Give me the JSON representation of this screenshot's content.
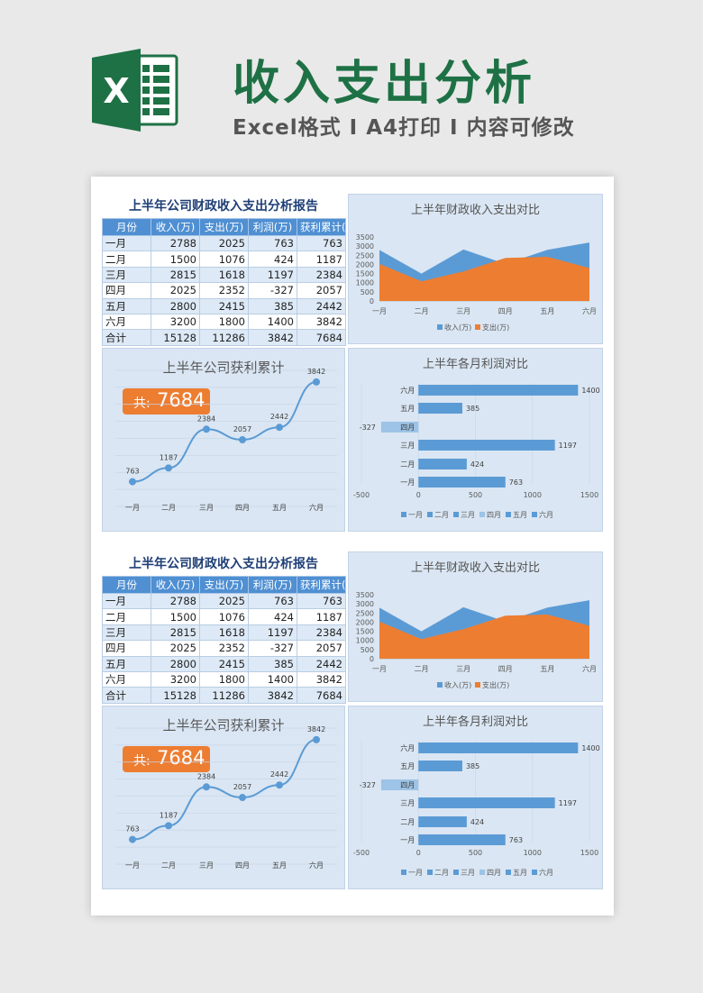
{
  "header": {
    "logo_letter": "X",
    "title": "收入支出分析",
    "subtitle": "Excel格式 I A4打印 I 内容可修改"
  },
  "colors": {
    "brand_green": "#1e7145",
    "income_blue": "#5b9bd5",
    "expense_orange": "#ed7d31",
    "negative_bar": "#9dc3e6",
    "panel_bg": "#dae6f3",
    "header_blue": "#4f8fd2"
  },
  "table": {
    "title": "上半年公司财政收入支出分析报告",
    "headers": [
      "月份",
      "收入(万)",
      "支出(万)",
      "利润(万)",
      "获利累计(万)"
    ],
    "rows": [
      [
        "一月",
        "2788",
        "2025",
        "763",
        "763"
      ],
      [
        "二月",
        "1500",
        "1076",
        "424",
        "1187"
      ],
      [
        "三月",
        "2815",
        "1618",
        "1197",
        "2384"
      ],
      [
        "四月",
        "2025",
        "2352",
        "-327",
        "2057"
      ],
      [
        "五月",
        "2800",
        "2415",
        "385",
        "2442"
      ],
      [
        "六月",
        "3200",
        "1800",
        "1400",
        "3842"
      ],
      [
        "合计",
        "15128",
        "11286",
        "3842",
        "7684"
      ]
    ]
  },
  "total_badge": {
    "label": "共:",
    "value": "7684"
  },
  "chart_data": [
    {
      "type": "area",
      "title": "上半年财政收入支出对比",
      "categories": [
        "一月",
        "二月",
        "三月",
        "四月",
        "五月",
        "六月"
      ],
      "series": [
        {
          "name": "收入(万)",
          "values": [
            2788,
            1500,
            2815,
            2025,
            2800,
            3200
          ],
          "color": "#5b9bd5"
        },
        {
          "name": "支出(万)",
          "values": [
            2025,
            1076,
            1618,
            2352,
            2415,
            1800
          ],
          "color": "#ed7d31"
        }
      ],
      "ylim": [
        0,
        3500
      ],
      "yticks": [
        "0",
        "500",
        "1000",
        "1500",
        "2000",
        "2500",
        "3000",
        "3500"
      ],
      "legend": "bottom"
    },
    {
      "type": "line",
      "title": "上半年公司获利累计",
      "categories": [
        "一月",
        "二月",
        "三月",
        "四月",
        "五月",
        "六月"
      ],
      "values": [
        763,
        1187,
        2384,
        2057,
        2442,
        3842
      ],
      "ylim": [
        0,
        4200
      ],
      "grid": true
    },
    {
      "type": "bar",
      "orientation": "horizontal",
      "title": "上半年各月利润对比",
      "categories": [
        "一月",
        "二月",
        "三月",
        "四月",
        "五月",
        "六月"
      ],
      "values": [
        763,
        424,
        1197,
        -327,
        385,
        1400
      ],
      "xlim": [
        -500,
        1500
      ],
      "xticks": [
        "-500",
        "0",
        "500",
        "1000",
        "1500"
      ],
      "legend_labels": [
        "一月",
        "二月",
        "三月",
        "四月",
        "五月",
        "六月"
      ],
      "legend": "bottom"
    }
  ]
}
